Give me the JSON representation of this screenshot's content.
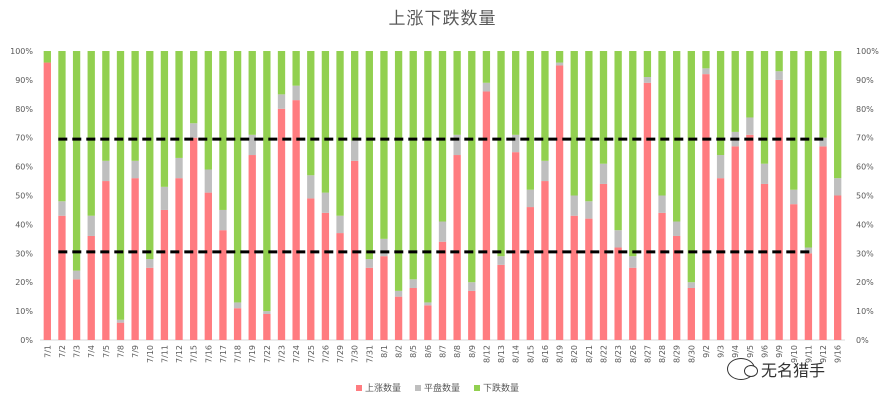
{
  "chart_data": {
    "type": "bar",
    "stacked": true,
    "title": "上涨下跌数量",
    "categories": [
      "7/1",
      "7/2",
      "7/3",
      "7/4",
      "7/5",
      "7/8",
      "7/9",
      "7/10",
      "7/11",
      "7/12",
      "7/15",
      "7/16",
      "7/17",
      "7/18",
      "7/19",
      "7/22",
      "7/23",
      "7/24",
      "7/25",
      "7/26",
      "7/29",
      "7/30",
      "7/31",
      "8/1",
      "8/2",
      "8/5",
      "8/6",
      "8/7",
      "8/8",
      "8/9",
      "8/12",
      "8/13",
      "8/14",
      "8/15",
      "8/16",
      "8/19",
      "8/20",
      "8/21",
      "8/22",
      "8/23",
      "8/26",
      "8/27",
      "8/28",
      "8/29",
      "8/30",
      "9/2",
      "9/3",
      "9/4",
      "9/5",
      "9/6",
      "9/9",
      "9/10",
      "9/11",
      "9/12",
      "9/16"
    ],
    "series": [
      {
        "name": "上涨数量",
        "color": "#ff7c80",
        "values": [
          96,
          43,
          21,
          36,
          55,
          6,
          56,
          25,
          45,
          56,
          70,
          51,
          38,
          11,
          64,
          9,
          80,
          83,
          49,
          44,
          37,
          62,
          25,
          29,
          15,
          18,
          12,
          34,
          64,
          17,
          86,
          26,
          65,
          46,
          55,
          95,
          43,
          42,
          54,
          32,
          25,
          89,
          44,
          36,
          18,
          92,
          56,
          67,
          71,
          54,
          90,
          47,
          30,
          67,
          50
        ]
      },
      {
        "name": "平盘数量",
        "color": "#bfbfbf",
        "values": [
          0,
          5,
          3,
          7,
          7,
          1,
          6,
          3,
          8,
          7,
          5,
          8,
          7,
          2,
          7,
          1,
          5,
          5,
          8,
          7,
          6,
          7,
          3,
          6,
          2,
          3,
          1,
          7,
          7,
          3,
          3,
          3,
          6,
          6,
          7,
          1,
          7,
          6,
          7,
          6,
          4,
          2,
          6,
          5,
          2,
          2,
          8,
          5,
          6,
          7,
          3,
          5,
          2,
          3,
          6
        ]
      },
      {
        "name": "下跌数量",
        "color": "#92d050",
        "values": [
          4,
          52,
          76,
          57,
          38,
          93,
          38,
          72,
          47,
          37,
          25,
          41,
          55,
          87,
          29,
          90,
          15,
          12,
          43,
          49,
          57,
          31,
          72,
          65,
          83,
          79,
          87,
          59,
          29,
          80,
          11,
          71,
          29,
          48,
          38,
          4,
          50,
          52,
          39,
          62,
          71,
          9,
          50,
          59,
          80,
          6,
          36,
          28,
          23,
          39,
          7,
          48,
          68,
          30,
          44
        ]
      }
    ],
    "reference_lines": [
      {
        "value": 69.5,
        "from": "7/2",
        "to": "9/12",
        "color": "#000000",
        "style": "dashed"
      },
      {
        "value": 30.5,
        "from": "7/2",
        "to": "9/11",
        "color": "#000000",
        "style": "dashed"
      }
    ],
    "y_ticks": [
      "0%",
      "10%",
      "20%",
      "30%",
      "40%",
      "50%",
      "60%",
      "70%",
      "80%",
      "90%",
      "100%"
    ],
    "ylim": [
      0,
      100
    ],
    "legend_position": "bottom",
    "grid": false
  },
  "watermark": {
    "text": "无名猎手"
  }
}
